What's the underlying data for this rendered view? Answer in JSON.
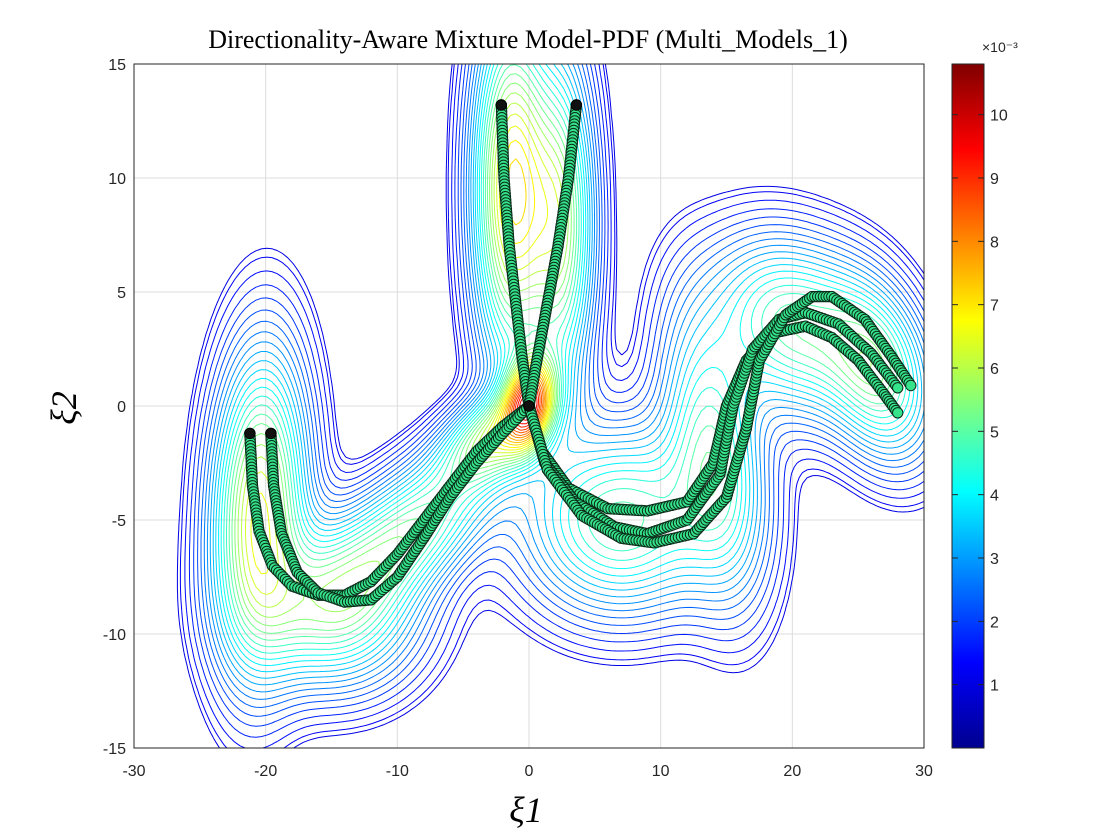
{
  "chart_data": {
    "type": "contour-scatter",
    "title": "Directionality-Aware Mixture Model-PDF (Multi_Models_1)",
    "xlabel": "ξ1",
    "ylabel": "ξ2",
    "xlim": [
      -30,
      30
    ],
    "ylim": [
      -15,
      15
    ],
    "xticks": [
      "-30",
      "-20",
      "-10",
      "0",
      "10",
      "20",
      "30"
    ],
    "yticks": [
      "-15",
      "-10",
      "-5",
      "0",
      "5",
      "10",
      "15"
    ],
    "grid": true,
    "colorbar": {
      "colormap": "jet",
      "exponent_label": "×10⁻³",
      "ticks": [
        "1",
        "2",
        "3",
        "4",
        "5",
        "6",
        "7",
        "8",
        "9",
        "10"
      ],
      "range": [
        0.0,
        10.8
      ]
    },
    "colors": {
      "contour": "#1a1a9c",
      "marker_fill": "#35e38a",
      "marker_edge": "#0a2a18"
    },
    "trajectories": [
      {
        "points": [
          [
            -21.2,
            -1.2
          ],
          [
            -21,
            -3.5
          ],
          [
            -20.5,
            -5.5
          ],
          [
            -19.5,
            -7
          ],
          [
            -18,
            -7.9
          ],
          [
            -16,
            -8.3
          ],
          [
            -14,
            -8.3
          ],
          [
            -12,
            -7.7
          ],
          [
            -10,
            -6.5
          ],
          [
            -8,
            -5
          ],
          [
            -6,
            -3.5
          ],
          [
            -4,
            -2
          ],
          [
            -2,
            -0.9
          ],
          [
            0,
            0
          ]
        ]
      },
      {
        "points": [
          [
            -19.6,
            -1.2
          ],
          [
            -19.4,
            -3.5
          ],
          [
            -18.8,
            -5.6
          ],
          [
            -17.6,
            -7.3
          ],
          [
            -16,
            -8.2
          ],
          [
            -14,
            -8.6
          ],
          [
            -12,
            -8.5
          ],
          [
            -10,
            -7.5
          ],
          [
            -8,
            -5.8
          ],
          [
            -6,
            -4
          ],
          [
            -4,
            -2.5
          ],
          [
            -2,
            -1.2
          ],
          [
            0,
            0
          ]
        ]
      },
      {
        "points": [
          [
            -2.1,
            13.2
          ],
          [
            -1.9,
            10
          ],
          [
            -1.5,
            7
          ],
          [
            -1,
            4.5
          ],
          [
            -0.5,
            2
          ],
          [
            0,
            0
          ]
        ]
      },
      {
        "points": [
          [
            3.6,
            13.2
          ],
          [
            3,
            10
          ],
          [
            2.2,
            7
          ],
          [
            1.4,
            4.5
          ],
          [
            0.6,
            2
          ],
          [
            0,
            0
          ]
        ]
      },
      {
        "points": [
          [
            0,
            0
          ],
          [
            1,
            -2
          ],
          [
            3,
            -3.6
          ],
          [
            6,
            -4.5
          ],
          [
            9,
            -4.6
          ],
          [
            12,
            -4.2
          ],
          [
            14,
            -2.5
          ],
          [
            15,
            0
          ],
          [
            16.5,
            2
          ],
          [
            18.5,
            3.2
          ],
          [
            21,
            3.5
          ],
          [
            23,
            3
          ],
          [
            25,
            2
          ],
          [
            27,
            0.5
          ],
          [
            28,
            -0.3
          ]
        ]
      },
      {
        "points": [
          [
            0,
            0
          ],
          [
            1.2,
            -2.5
          ],
          [
            3.5,
            -4.2
          ],
          [
            6.5,
            -5.3
          ],
          [
            9,
            -5.6
          ],
          [
            12,
            -5
          ],
          [
            14.5,
            -3
          ],
          [
            15.5,
            0
          ],
          [
            17,
            2.5
          ],
          [
            19,
            3.8
          ],
          [
            21,
            4.1
          ],
          [
            23.5,
            3.6
          ],
          [
            26,
            2.3
          ],
          [
            28,
            0.8
          ]
        ]
      },
      {
        "points": [
          [
            0,
            0
          ],
          [
            1.4,
            -2.8
          ],
          [
            4,
            -4.8
          ],
          [
            7,
            -5.8
          ],
          [
            9.5,
            -6
          ],
          [
            12.5,
            -5.6
          ],
          [
            15,
            -4
          ],
          [
            16.5,
            -1
          ],
          [
            17.5,
            2
          ],
          [
            19.5,
            4
          ],
          [
            21.5,
            4.8
          ],
          [
            23,
            4.8
          ],
          [
            25.5,
            3.8
          ],
          [
            27.5,
            2.2
          ],
          [
            29,
            0.9
          ]
        ]
      }
    ],
    "density_components": [
      {
        "center": [
          -20.5,
          -4.5
        ],
        "sx": 2.2,
        "sy": 4.2,
        "rho": 0.1,
        "w": 0.7
      },
      {
        "center": [
          -15,
          -8.8
        ],
        "sx": 4.0,
        "sy": 2.2,
        "rho": 0.0,
        "w": 0.45
      },
      {
        "center": [
          -9,
          -5.5
        ],
        "sx": 4.0,
        "sy": 2.2,
        "rho": 0.6,
        "w": 0.45
      },
      {
        "center": [
          -1.3,
          9.5
        ],
        "sx": 1.8,
        "sy": 4.8,
        "rho": 0.0,
        "w": 0.8
      },
      {
        "center": [
          2.4,
          8.0
        ],
        "sx": 1.6,
        "sy": 4.5,
        "rho": 0.0,
        "w": 0.55
      },
      {
        "center": [
          0.0,
          0.2
        ],
        "sx": 1.2,
        "sy": 1.3,
        "rho": 0.2,
        "w": 1.0
      },
      {
        "center": [
          -2.5,
          -1.3
        ],
        "sx": 2.6,
        "sy": 1.4,
        "rho": 0.5,
        "w": 0.55
      },
      {
        "center": [
          7.0,
          -5.0
        ],
        "sx": 4.5,
        "sy": 2.5,
        "rho": 0.0,
        "w": 0.45
      },
      {
        "center": [
          14.0,
          -2.0
        ],
        "sx": 2.4,
        "sy": 3.8,
        "rho": -0.3,
        "w": 0.4
      },
      {
        "center": [
          20.0,
          3.5
        ],
        "sx": 3.8,
        "sy": 2.4,
        "rho": -0.2,
        "w": 0.45
      },
      {
        "center": [
          26.5,
          1.5
        ],
        "sx": 2.6,
        "sy": 2.4,
        "rho": -0.3,
        "w": 0.45
      }
    ]
  }
}
